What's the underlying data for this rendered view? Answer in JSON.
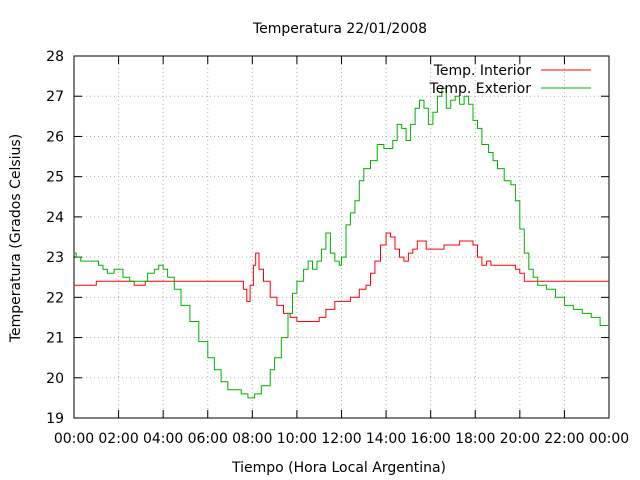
{
  "chart_data": {
    "type": "line",
    "title": "Temperatura 22/01/2008",
    "xlabel": "Tiempo (Hora Local Argentina)",
    "ylabel": "Temperatura (Grados Celsius)",
    "xlim": [
      0,
      24
    ],
    "ylim": [
      19,
      28
    ],
    "grid": true,
    "legend_position": "top-right",
    "x_ticks": [
      {
        "v": 0,
        "label": "00:00"
      },
      {
        "v": 2,
        "label": "02:00"
      },
      {
        "v": 4,
        "label": "04:00"
      },
      {
        "v": 6,
        "label": "06:00"
      },
      {
        "v": 8,
        "label": "08:00"
      },
      {
        "v": 10,
        "label": "10:00"
      },
      {
        "v": 12,
        "label": "12:00"
      },
      {
        "v": 14,
        "label": "14:00"
      },
      {
        "v": 16,
        "label": "16:00"
      },
      {
        "v": 18,
        "label": "18:00"
      },
      {
        "v": 20,
        "label": "20:00"
      },
      {
        "v": 22,
        "label": "22:00"
      },
      {
        "v": 24,
        "label": "00:00"
      }
    ],
    "y_ticks": [
      {
        "v": 19,
        "label": "19"
      },
      {
        "v": 20,
        "label": "20"
      },
      {
        "v": 21,
        "label": "21"
      },
      {
        "v": 22,
        "label": "22"
      },
      {
        "v": 23,
        "label": "23"
      },
      {
        "v": 24,
        "label": "24"
      },
      {
        "v": 25,
        "label": "25"
      },
      {
        "v": 26,
        "label": "26"
      },
      {
        "v": 27,
        "label": "27"
      },
      {
        "v": 28,
        "label": "28"
      }
    ],
    "series": [
      {
        "name": "Temp. Interior",
        "color": "#ff0000",
        "points": [
          [
            0,
            22.3
          ],
          [
            0.9,
            22.3
          ],
          [
            1.0,
            22.4
          ],
          [
            2.6,
            22.4
          ],
          [
            2.7,
            22.3
          ],
          [
            3.1,
            22.3
          ],
          [
            3.2,
            22.4
          ],
          [
            4.2,
            22.4
          ],
          [
            7.4,
            22.4
          ],
          [
            7.6,
            22.2
          ],
          [
            7.75,
            21.9
          ],
          [
            7.9,
            22.3
          ],
          [
            8.05,
            22.8
          ],
          [
            8.15,
            23.1
          ],
          [
            8.3,
            22.7
          ],
          [
            8.5,
            22.4
          ],
          [
            8.8,
            22.0
          ],
          [
            9.1,
            21.8
          ],
          [
            9.4,
            21.6
          ],
          [
            9.7,
            21.5
          ],
          [
            10.0,
            21.4
          ],
          [
            10.5,
            21.4
          ],
          [
            11.0,
            21.5
          ],
          [
            11.3,
            21.7
          ],
          [
            11.7,
            21.9
          ],
          [
            12.0,
            21.9
          ],
          [
            12.4,
            22.0
          ],
          [
            12.8,
            22.2
          ],
          [
            13.1,
            22.3
          ],
          [
            13.3,
            22.6
          ],
          [
            13.5,
            22.9
          ],
          [
            13.75,
            23.3
          ],
          [
            14.0,
            23.6
          ],
          [
            14.2,
            23.5
          ],
          [
            14.4,
            23.2
          ],
          [
            14.6,
            23.0
          ],
          [
            14.8,
            22.9
          ],
          [
            15.0,
            23.1
          ],
          [
            15.2,
            23.2
          ],
          [
            15.4,
            23.4
          ],
          [
            15.6,
            23.4
          ],
          [
            15.8,
            23.2
          ],
          [
            16.2,
            23.2
          ],
          [
            16.6,
            23.3
          ],
          [
            17.0,
            23.3
          ],
          [
            17.3,
            23.4
          ],
          [
            17.7,
            23.4
          ],
          [
            17.9,
            23.3
          ],
          [
            18.1,
            23.0
          ],
          [
            18.3,
            22.8
          ],
          [
            18.5,
            22.9
          ],
          [
            18.7,
            22.8
          ],
          [
            19.5,
            22.8
          ],
          [
            19.8,
            22.7
          ],
          [
            20.0,
            22.6
          ],
          [
            20.2,
            22.4
          ],
          [
            24.0,
            22.4
          ]
        ]
      },
      {
        "name": "Temp. Exterior",
        "color": "#00b000",
        "points": [
          [
            0,
            23.1
          ],
          [
            0.1,
            23.0
          ],
          [
            0.3,
            22.9
          ],
          [
            1.0,
            22.9
          ],
          [
            1.1,
            22.8
          ],
          [
            1.3,
            22.7
          ],
          [
            1.5,
            22.6
          ],
          [
            1.7,
            22.6
          ],
          [
            1.8,
            22.7
          ],
          [
            2.0,
            22.7
          ],
          [
            2.2,
            22.5
          ],
          [
            2.5,
            22.4
          ],
          [
            3.0,
            22.4
          ],
          [
            3.3,
            22.6
          ],
          [
            3.6,
            22.7
          ],
          [
            3.8,
            22.8
          ],
          [
            4.0,
            22.7
          ],
          [
            4.2,
            22.5
          ],
          [
            4.5,
            22.2
          ],
          [
            4.8,
            21.8
          ],
          [
            5.2,
            21.4
          ],
          [
            5.6,
            20.9
          ],
          [
            6.0,
            20.5
          ],
          [
            6.3,
            20.2
          ],
          [
            6.6,
            19.9
          ],
          [
            6.9,
            19.7
          ],
          [
            7.4,
            19.7
          ],
          [
            7.5,
            19.6
          ],
          [
            7.8,
            19.5
          ],
          [
            8.0,
            19.5
          ],
          [
            8.1,
            19.6
          ],
          [
            8.4,
            19.8
          ],
          [
            8.8,
            20.2
          ],
          [
            9.0,
            20.5
          ],
          [
            9.3,
            21.0
          ],
          [
            9.6,
            21.6
          ],
          [
            9.8,
            22.1
          ],
          [
            10.0,
            22.4
          ],
          [
            10.3,
            22.7
          ],
          [
            10.5,
            22.9
          ],
          [
            10.7,
            22.7
          ],
          [
            10.9,
            22.9
          ],
          [
            11.1,
            23.2
          ],
          [
            11.3,
            23.6
          ],
          [
            11.5,
            23.1
          ],
          [
            11.7,
            22.9
          ],
          [
            11.9,
            22.8
          ],
          [
            12.0,
            23.0
          ],
          [
            12.2,
            23.8
          ],
          [
            12.4,
            24.1
          ],
          [
            12.6,
            24.4
          ],
          [
            12.8,
            24.9
          ],
          [
            13.0,
            25.2
          ],
          [
            13.3,
            25.4
          ],
          [
            13.6,
            25.8
          ],
          [
            13.9,
            25.7
          ],
          [
            14.1,
            25.7
          ],
          [
            14.3,
            25.9
          ],
          [
            14.5,
            26.3
          ],
          [
            14.7,
            26.2
          ],
          [
            14.9,
            25.9
          ],
          [
            15.1,
            26.3
          ],
          [
            15.3,
            26.7
          ],
          [
            15.5,
            26.9
          ],
          [
            15.7,
            26.7
          ],
          [
            15.9,
            26.3
          ],
          [
            16.1,
            26.6
          ],
          [
            16.3,
            27.0
          ],
          [
            16.5,
            27.2
          ],
          [
            16.7,
            26.7
          ],
          [
            16.9,
            26.9
          ],
          [
            17.1,
            27.0
          ],
          [
            17.3,
            26.8
          ],
          [
            17.5,
            27.0
          ],
          [
            17.7,
            26.8
          ],
          [
            17.9,
            26.4
          ],
          [
            18.1,
            26.2
          ],
          [
            18.3,
            25.8
          ],
          [
            18.6,
            25.6
          ],
          [
            18.8,
            25.4
          ],
          [
            19.0,
            25.2
          ],
          [
            19.3,
            24.9
          ],
          [
            19.6,
            24.8
          ],
          [
            19.8,
            24.4
          ],
          [
            20.0,
            23.7
          ],
          [
            20.2,
            23.1
          ],
          [
            20.4,
            22.7
          ],
          [
            20.6,
            22.5
          ],
          [
            20.8,
            22.3
          ],
          [
            21.2,
            22.2
          ],
          [
            21.6,
            22.0
          ],
          [
            22.0,
            21.8
          ],
          [
            22.4,
            21.7
          ],
          [
            22.8,
            21.6
          ],
          [
            23.2,
            21.5
          ],
          [
            23.6,
            21.3
          ],
          [
            24.0,
            21.3
          ]
        ]
      }
    ]
  }
}
